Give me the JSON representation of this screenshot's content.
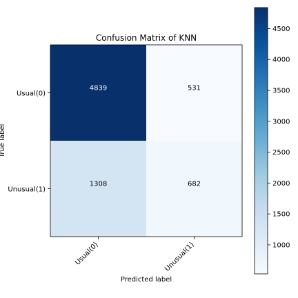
{
  "chart_data": {
    "type": "heatmap",
    "title": "Confusion Matrix of KNN",
    "xlabel": "Predicted label",
    "ylabel": "True label",
    "x_categories": [
      "Usual(0)",
      "Unusual(1)"
    ],
    "y_categories": [
      "Usual(0)",
      "Unusual(1)"
    ],
    "values": [
      [
        4839,
        531
      ],
      [
        1308,
        682
      ]
    ],
    "colormap": "Blues",
    "colorbar": {
      "range": [
        531,
        4839
      ],
      "ticks": [
        1000,
        1500,
        2000,
        2500,
        3000,
        3500,
        4000,
        4500
      ]
    }
  }
}
